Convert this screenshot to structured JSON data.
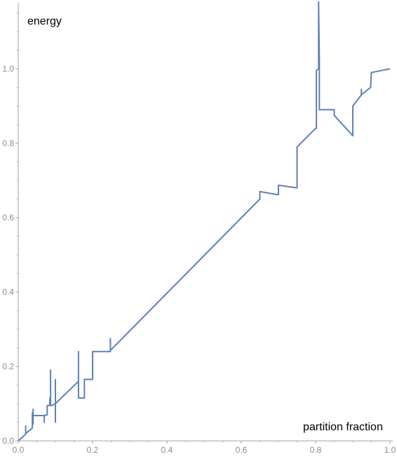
{
  "chart_data": {
    "type": "line",
    "title": "",
    "xlabel": "partition fraction",
    "ylabel": "energy",
    "xlim": [
      0,
      1
    ],
    "ylim": [
      0,
      1.17
    ],
    "grid": false,
    "x_ticks": [
      "0.0",
      "0.2",
      "0.4",
      "0.6",
      "0.8",
      "1.0"
    ],
    "y_ticks": [
      "0.0",
      "0.2",
      "0.4",
      "0.6",
      "0.8",
      "1.0"
    ],
    "series": [
      {
        "color": "#5e81b5",
        "x": [
          0.0,
          0.02,
          0.02,
          0.02,
          0.033,
          0.038,
          0.038,
          0.038,
          0.04,
          0.04,
          0.04,
          0.07,
          0.07,
          0.07,
          0.078,
          0.078,
          0.085,
          0.085,
          0.085,
          0.087,
          0.087,
          0.087,
          0.09,
          0.09,
          0.09,
          0.1,
          0.1,
          0.1,
          0.1,
          0.162,
          0.162,
          0.162,
          0.17,
          0.178,
          0.178,
          0.195,
          0.197,
          0.2,
          0.2,
          0.24,
          0.248,
          0.248,
          0.248,
          0.25,
          0.65,
          0.65,
          0.695,
          0.7,
          0.7,
          0.75,
          0.75,
          0.8,
          0.802,
          0.802,
          0.808,
          0.808,
          0.81,
          0.81,
          0.81,
          0.81,
          0.85,
          0.85,
          0.85,
          0.9,
          0.9,
          0.923,
          0.923,
          0.923,
          0.948,
          0.948,
          0.95,
          1.0
        ],
        "y": [
          0.0,
          0.018,
          0.04,
          0.02,
          0.03,
          0.035,
          0.075,
          0.045,
          0.045,
          0.085,
          0.068,
          0.068,
          0.05,
          0.068,
          0.07,
          0.095,
          0.095,
          0.115,
          0.095,
          0.095,
          0.19,
          0.095,
          0.095,
          0.095,
          0.095,
          0.1,
          0.165,
          0.05,
          0.1,
          0.16,
          0.24,
          0.115,
          0.115,
          0.115,
          0.165,
          0.165,
          0.165,
          0.165,
          0.24,
          0.24,
          0.24,
          0.275,
          0.245,
          0.245,
          0.65,
          0.67,
          0.662,
          0.662,
          0.687,
          0.68,
          0.79,
          0.84,
          0.84,
          0.995,
          1.0,
          1.18,
          1.03,
          0.89,
          0.89,
          0.89,
          0.89,
          0.875,
          0.875,
          0.82,
          0.9,
          0.93,
          0.945,
          0.93,
          0.95,
          0.95,
          0.99,
          1.0
        ]
      }
    ]
  }
}
